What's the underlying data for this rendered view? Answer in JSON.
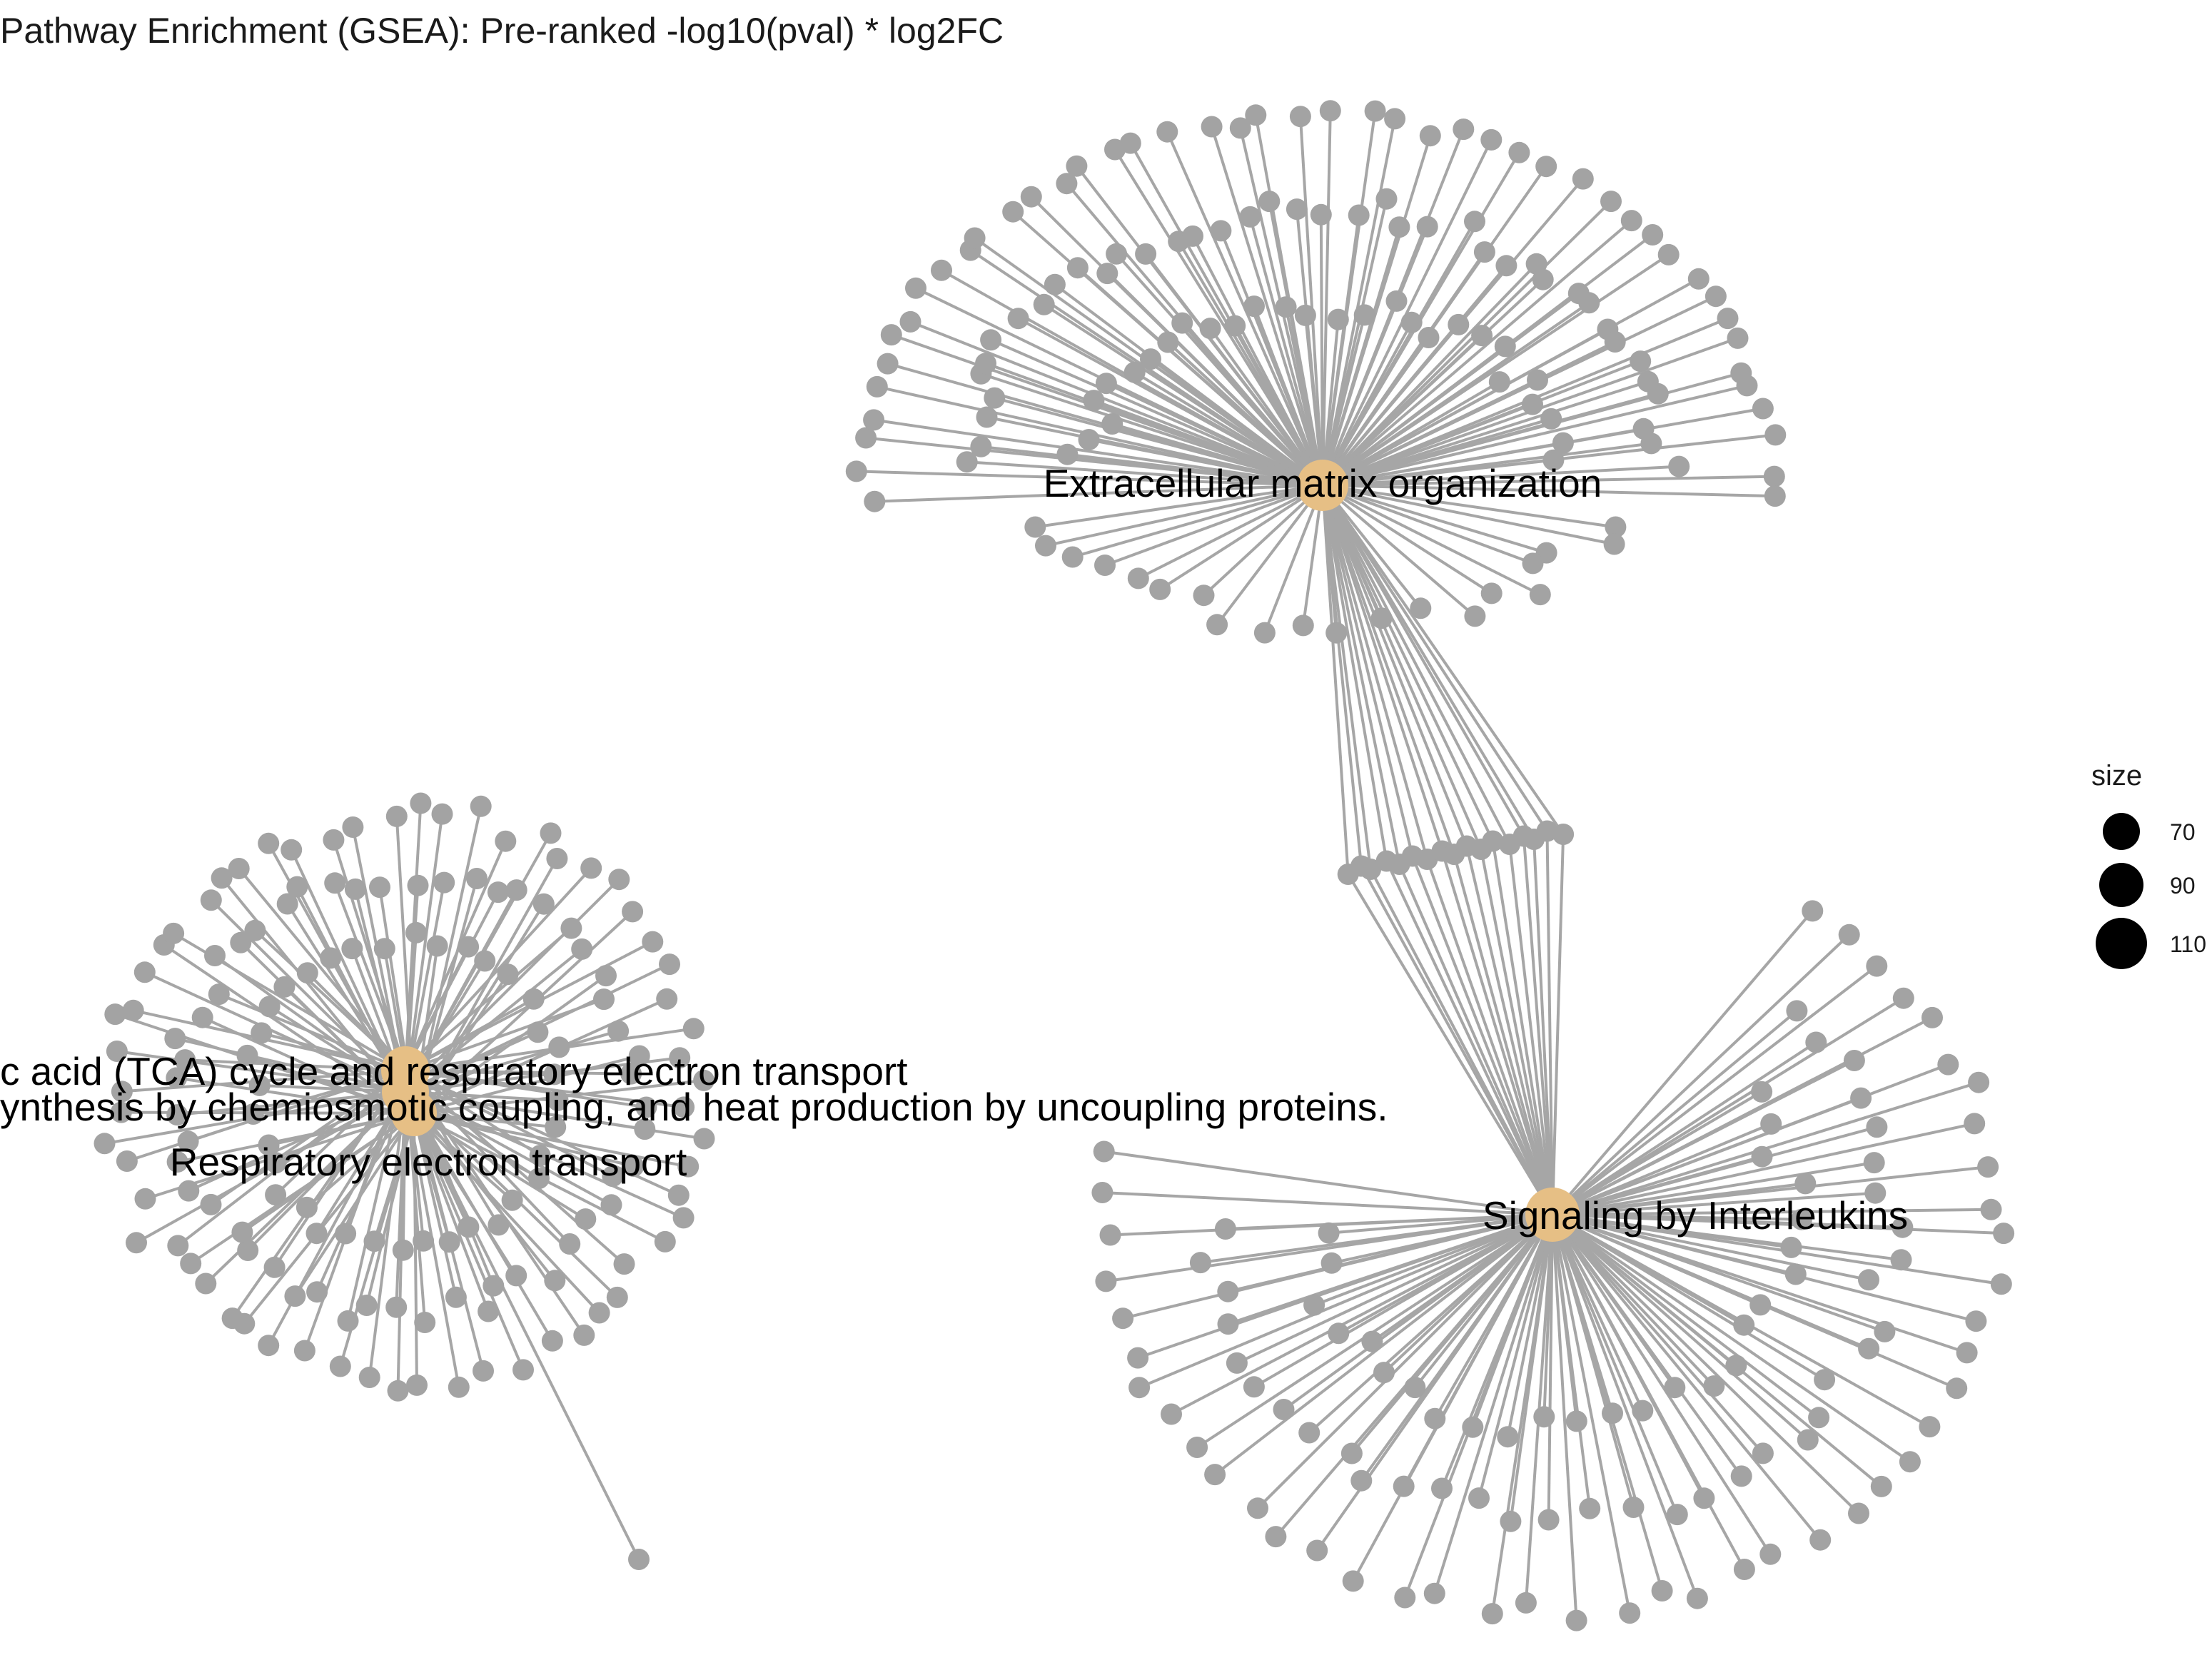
{
  "title": "Pathway Enrichment (GSEA): Pre-ranked -log10(pval) * log2FC",
  "colors": {
    "edge": "#a6a6a6",
    "gene": "#a3a3a3",
    "pathway": "#e6bf85",
    "label": "#000000"
  },
  "network": {
    "pathways": [
      {
        "name": "Extracellular matrix organization",
        "label": "Extracellular matrix organization"
      },
      {
        "name": "TCA cycle and respiratory electron transport",
        "label": "c acid (TCA) cycle and respiratory electron transport"
      },
      {
        "name": "Respiratory electron transport, ATP synthesis",
        "label": "ynthesis by chemiosmotic coupling, and heat production by uncoupling proteins."
      },
      {
        "name": "Respiratory electron transport",
        "label": "Respiratory electron transport"
      },
      {
        "name": "Signaling by Interleukins",
        "label": "Signaling by Interleukins"
      }
    ]
  },
  "legend": {
    "title": "size",
    "items": [
      {
        "label": "70",
        "value": 70
      },
      {
        "label": "90",
        "value": 90
      },
      {
        "label": "110",
        "value": 110
      }
    ]
  }
}
